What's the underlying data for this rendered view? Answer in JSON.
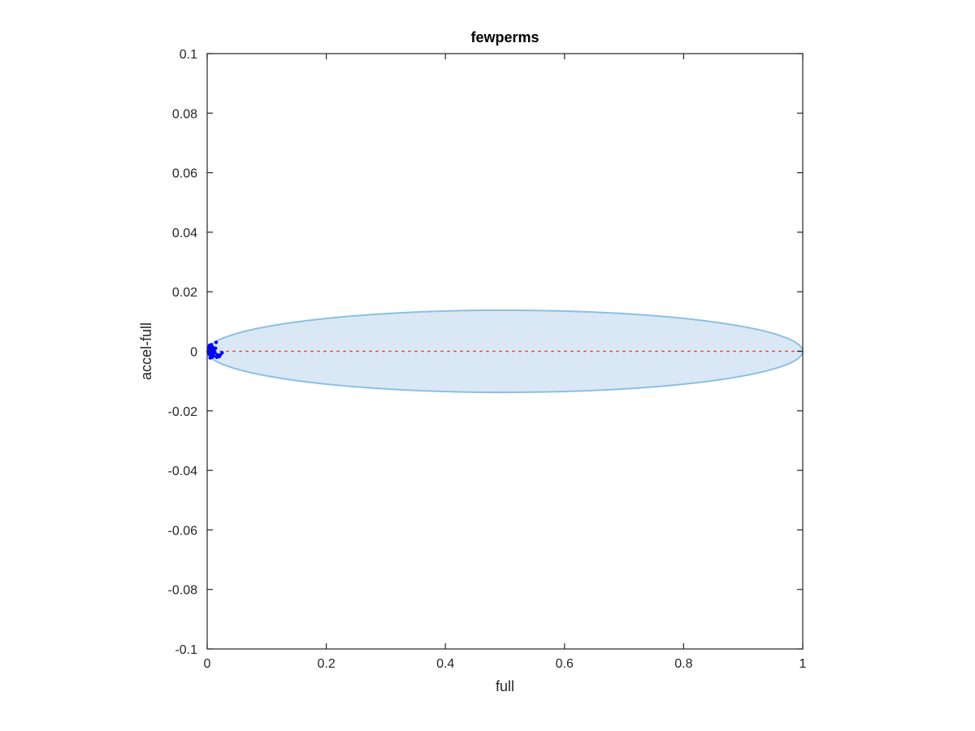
{
  "chart_data": {
    "type": "scatter",
    "title": "fewperms",
    "xlabel": "full",
    "ylabel": "accel-full",
    "xlim": [
      0,
      1
    ],
    "ylim": [
      -0.1,
      0.1
    ],
    "xticks": [
      0,
      0.2,
      0.4,
      0.6,
      0.8,
      1
    ],
    "xtick_labels": [
      "0",
      "0.2",
      "0.4",
      "0.6",
      "0.8",
      "1"
    ],
    "yticks": [
      -0.1,
      -0.08,
      -0.06,
      -0.04,
      -0.02,
      0,
      0.02,
      0.04,
      0.06,
      0.08,
      0.1
    ],
    "ytick_labels": [
      "-0.1",
      "-0.08",
      "-0.06",
      "-0.04",
      "-0.02",
      "0",
      "0.02",
      "0.04",
      "0.06",
      "0.08",
      "0.1"
    ],
    "grid": false,
    "ellipse": {
      "center_x": 0.5,
      "center_y": 0,
      "semi_x": 0.5,
      "semi_y": 0.0138,
      "fill": "#d9e8f4",
      "stroke": "#8cc0e2"
    },
    "reference_line": {
      "y": 0,
      "x_range": [
        0,
        1
      ],
      "color": "#ee3333",
      "style": "dotted"
    },
    "series": [
      {
        "color": "#0000ff",
        "x": [
          0.002,
          0.003,
          0.004,
          0.005,
          0.006,
          0.007,
          0.008,
          0.009,
          0.01,
          0.011,
          0.004,
          0.006,
          0.008,
          0.01,
          0.005,
          0.007,
          0.009,
          0.003,
          0.006,
          0.008,
          0.004,
          0.007,
          0.01,
          0.005,
          0.009,
          0.006,
          0.003,
          0.008,
          0.012,
          0.013,
          0.011,
          0.015,
          0.017,
          0.016,
          0.02,
          0.025,
          0.022,
          0.014
        ],
        "y": [
          0.0,
          0.0008,
          -0.001,
          0.0015,
          -0.0012,
          0.0005,
          -0.0005,
          0.001,
          -0.0008,
          0.0003,
          0.002,
          -0.0018,
          0.0016,
          -0.0015,
          -0.0022,
          0.0022,
          0.0,
          -0.0006,
          0.0,
          -0.002,
          0.0012,
          -0.0014,
          0.0012,
          0.0004,
          -0.0012,
          0.0018,
          0.0014,
          0.0008,
          0.0006,
          -0.0004,
          -0.0016,
          0.003,
          -0.0012,
          -0.002,
          -0.0018,
          -0.0005,
          -0.0012,
          0.001
        ]
      }
    ]
  }
}
